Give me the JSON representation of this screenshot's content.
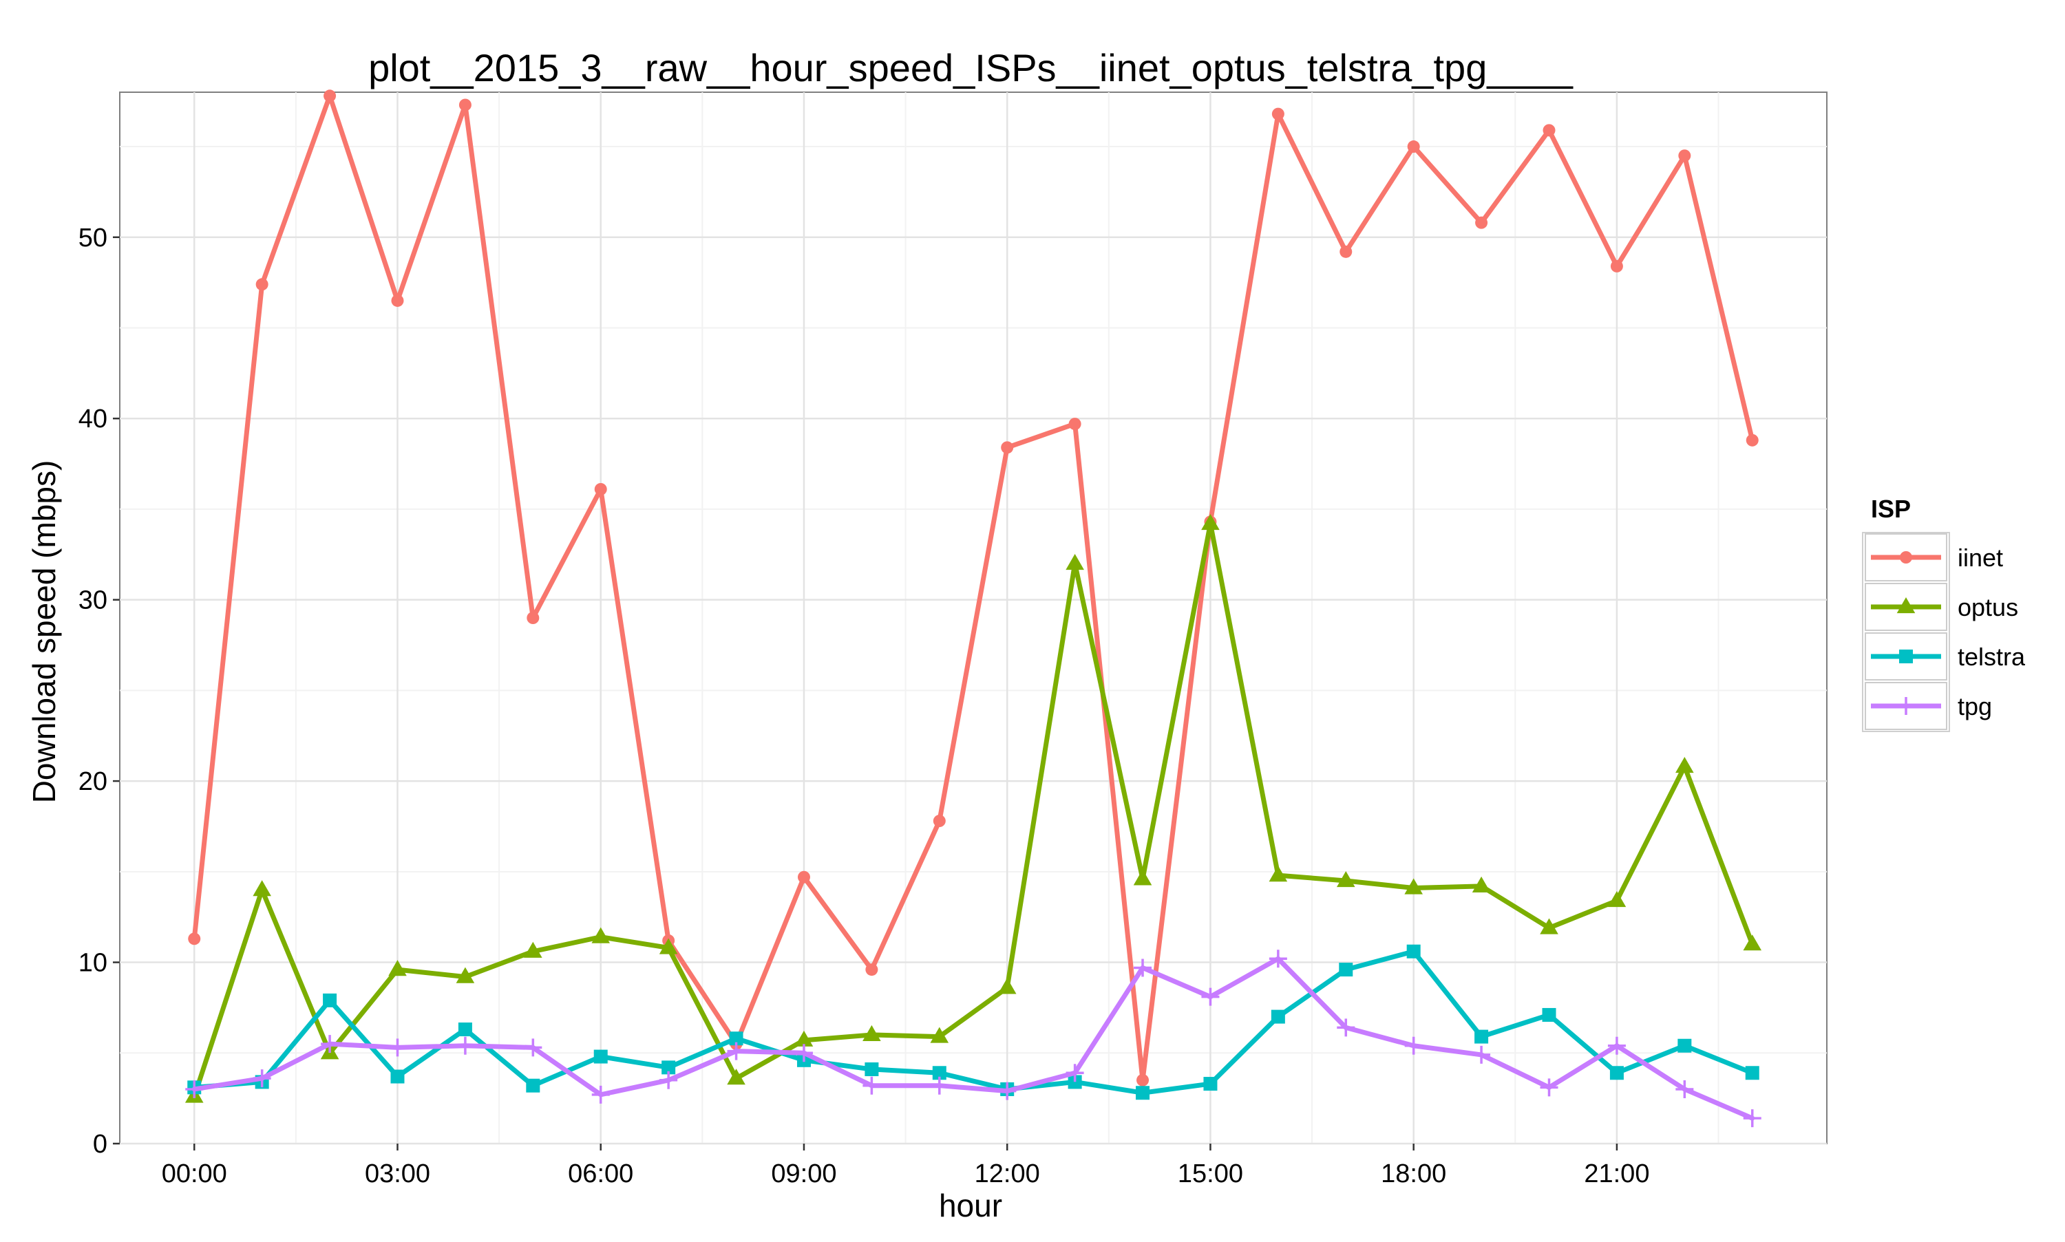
{
  "chart_data": {
    "type": "line",
    "title": "plot__2015_3__raw__hour_speed_ISPs__iinet_optus_telstra_tpg____",
    "xlabel": "hour",
    "ylabel": "Download speed (mbps)",
    "x": [
      0,
      1,
      2,
      3,
      4,
      5,
      6,
      7,
      8,
      9,
      10,
      11,
      12,
      13,
      14,
      15,
      16,
      17,
      18,
      19,
      20,
      21,
      22,
      23
    ],
    "xlim": [
      -1.1,
      24.1
    ],
    "ylim": [
      0,
      58
    ],
    "x_ticks": [
      0,
      3,
      6,
      9,
      12,
      15,
      18,
      21
    ],
    "x_tick_labels": [
      "00:00",
      "03:00",
      "06:00",
      "09:00",
      "12:00",
      "15:00",
      "18:00",
      "21:00"
    ],
    "y_ticks": [
      0,
      10,
      20,
      30,
      40,
      50
    ],
    "y_tick_labels": [
      "0",
      "10",
      "20",
      "30",
      "40",
      "50"
    ],
    "grid": true,
    "legend": {
      "title": "ISP",
      "position": "right"
    },
    "series": [
      {
        "name": "iinet",
        "color": "#F8766D",
        "marker": "circle",
        "values": [
          11.3,
          47.4,
          57.8,
          46.5,
          57.3,
          29.0,
          36.1,
          11.2,
          5.5,
          14.7,
          9.6,
          17.8,
          38.4,
          39.7,
          3.5,
          34.3,
          56.8,
          49.2,
          55.0,
          50.8,
          55.9,
          48.4,
          54.5,
          38.8
        ]
      },
      {
        "name": "optus",
        "color": "#7CAE00",
        "marker": "triangle",
        "values": [
          2.6,
          14.0,
          5.0,
          9.6,
          9.2,
          10.6,
          11.4,
          10.8,
          3.6,
          5.7,
          6.0,
          5.9,
          8.6,
          32.0,
          14.6,
          34.2,
          14.8,
          14.5,
          14.1,
          14.2,
          11.9,
          13.4,
          20.8,
          11.0
        ]
      },
      {
        "name": "telstra",
        "color": "#00BFC4",
        "marker": "square",
        "values": [
          3.1,
          3.4,
          7.9,
          3.7,
          6.3,
          3.2,
          4.8,
          4.2,
          5.8,
          4.6,
          4.1,
          3.9,
          3.0,
          3.4,
          2.8,
          3.3,
          7.0,
          9.6,
          10.6,
          5.9,
          7.1,
          3.9,
          5.4,
          3.9
        ]
      },
      {
        "name": "tpg",
        "color": "#C77CFF",
        "marker": "cross",
        "values": [
          3.0,
          3.6,
          5.5,
          5.3,
          5.4,
          5.3,
          2.7,
          3.5,
          5.1,
          5.0,
          3.2,
          3.2,
          2.9,
          3.9,
          9.7,
          8.1,
          10.2,
          6.4,
          5.4,
          4.9,
          3.1,
          5.4,
          3.0,
          1.4
        ]
      }
    ]
  }
}
